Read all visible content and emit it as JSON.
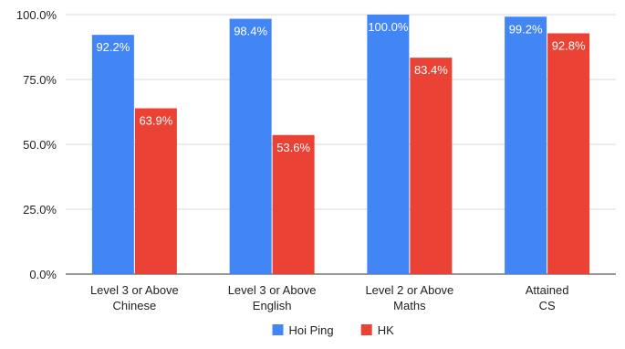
{
  "chart_data": {
    "type": "bar",
    "title": "",
    "xlabel": "",
    "ylabel": "",
    "ylim": [
      0,
      100
    ],
    "yticks": [
      0,
      25,
      50,
      75,
      100
    ],
    "ytick_labels": [
      "0.0%",
      "25.0%",
      "50.0%",
      "75.0%",
      "100.0%"
    ],
    "grid": true,
    "legend_position": "bottom",
    "categories": [
      [
        "Level 3 or Above",
        "Chinese"
      ],
      [
        "Level 3 or Above",
        "English"
      ],
      [
        "Level 2 or Above",
        "Maths"
      ],
      [
        "Attained",
        "CS"
      ]
    ],
    "series": [
      {
        "name": "Hoi Ping",
        "color": "#4285f4",
        "values": [
          92.2,
          98.4,
          100.0,
          99.2
        ],
        "labels": [
          "92.2%",
          "98.4%",
          "100.0%",
          "99.2%"
        ]
      },
      {
        "name": "HK",
        "color": "#ea4335",
        "values": [
          63.9,
          53.6,
          83.4,
          92.8
        ],
        "labels": [
          "63.9%",
          "53.6%",
          "83.4%",
          "92.8%"
        ]
      }
    ]
  }
}
